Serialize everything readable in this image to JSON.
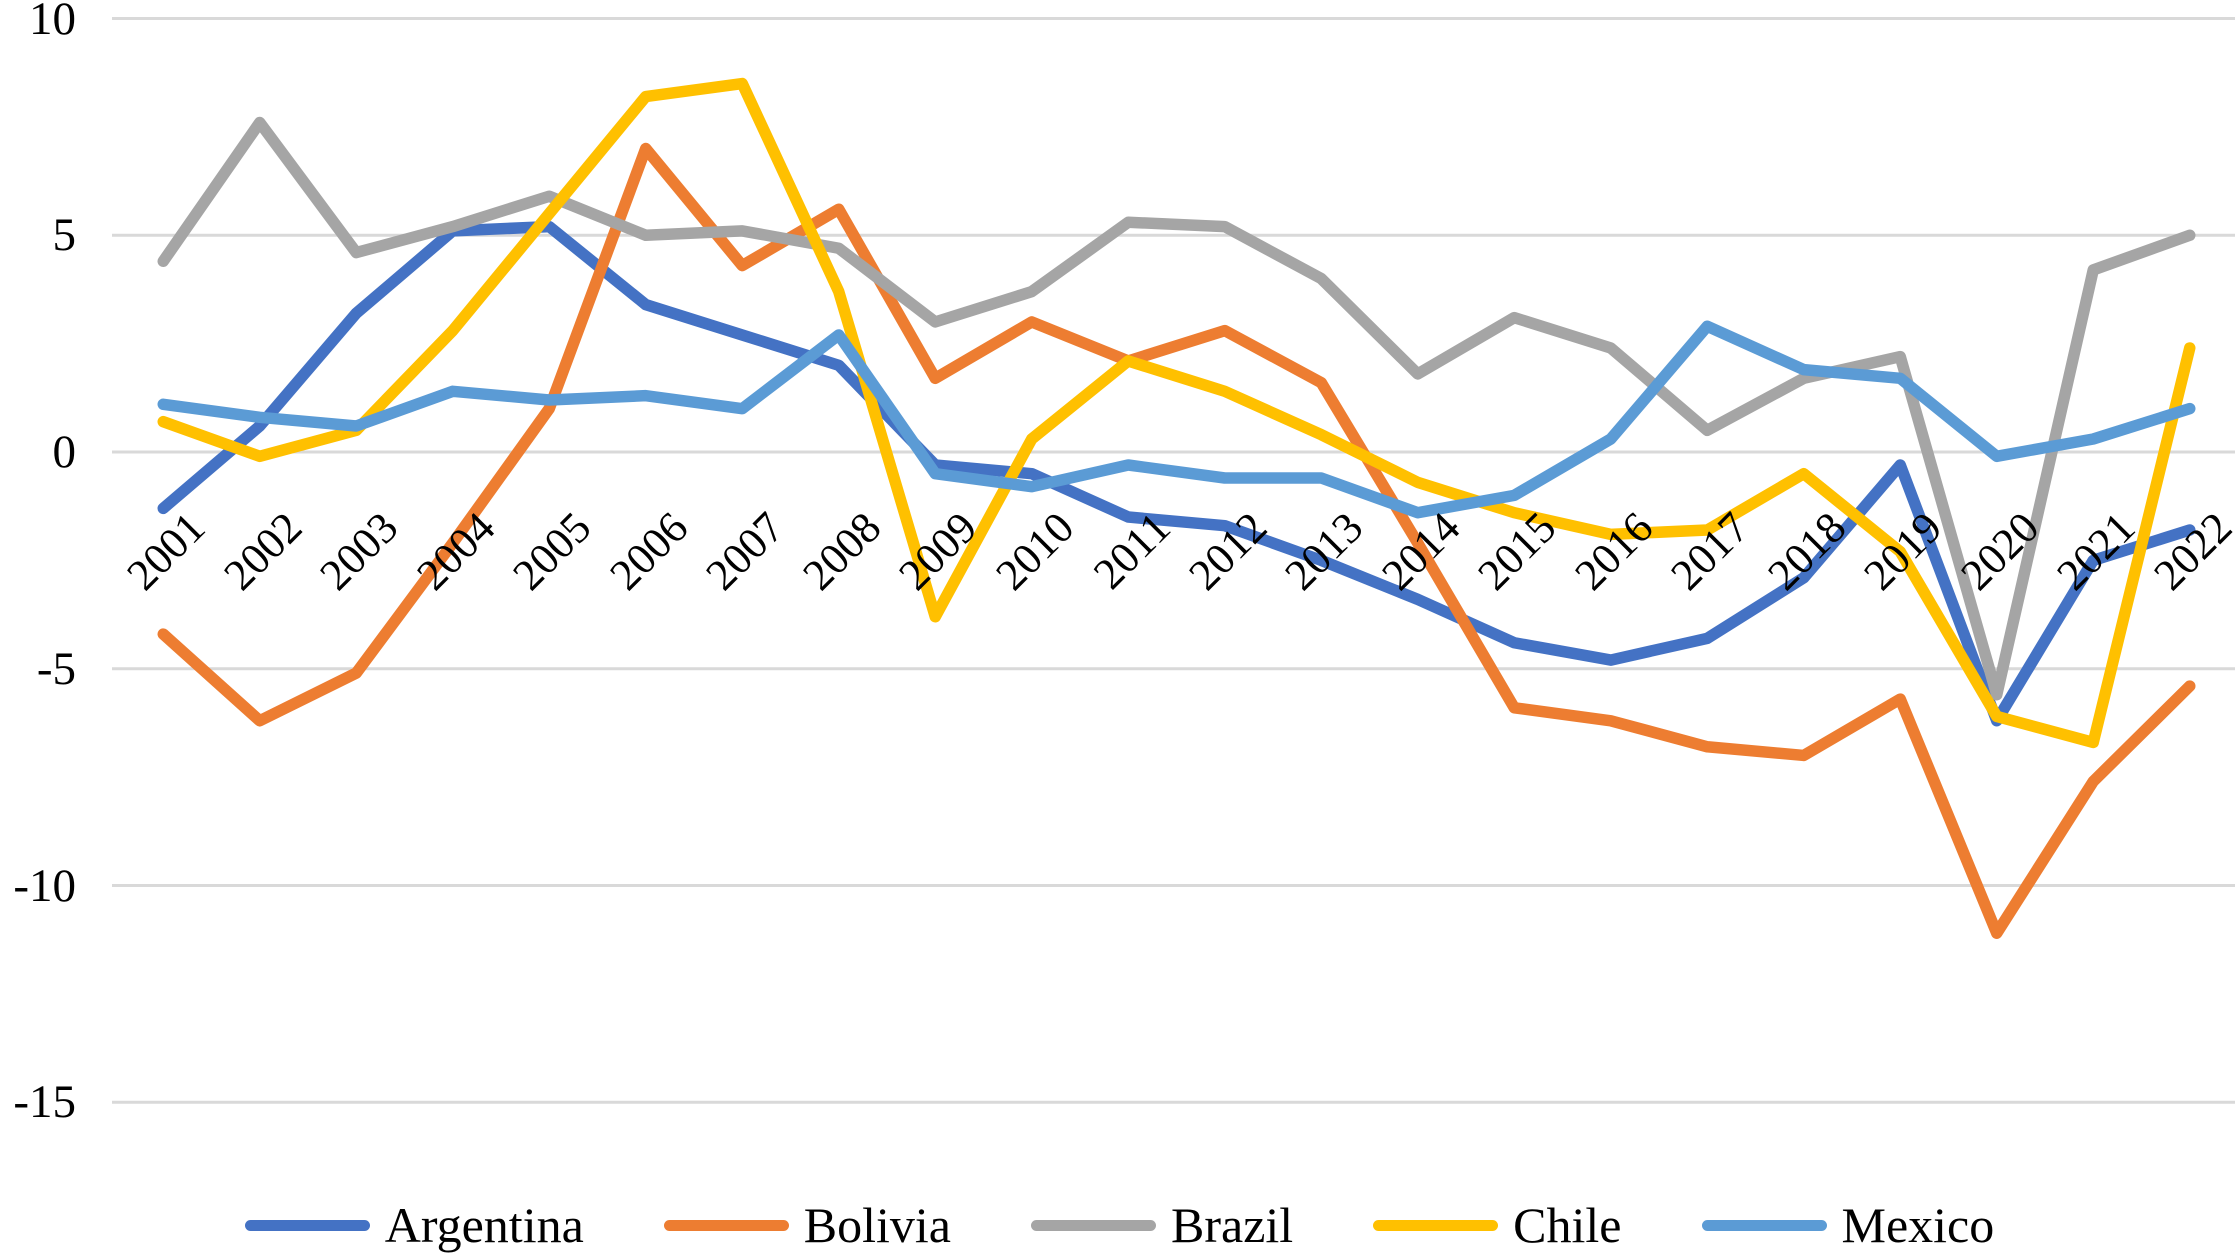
{
  "chart_data": {
    "type": "line",
    "title": "",
    "xlabel": "",
    "ylabel": "",
    "x": [
      "2001",
      "2002",
      "2003",
      "2004",
      "2005",
      "2006",
      "2007",
      "2008",
      "2009",
      "2010",
      "2011",
      "2012",
      "2013",
      "2014",
      "2015",
      "2016",
      "2017",
      "2018",
      "2019",
      "2020",
      "2021",
      "2022"
    ],
    "series": [
      {
        "name": "Argentina",
        "color": "#4472C4",
        "values": [
          -1.3,
          0.6,
          3.2,
          5.1,
          5.2,
          3.4,
          2.7,
          2.0,
          -0.3,
          -0.5,
          -1.5,
          -1.7,
          -2.5,
          -3.4,
          -4.4,
          -4.8,
          -4.3,
          -2.9,
          -0.3,
          -6.2,
          -2.5,
          -1.8
        ]
      },
      {
        "name": "Bolivia",
        "color": "#ED7D31",
        "values": [
          -4.2,
          -6.2,
          -5.1,
          -2.1,
          1.0,
          7.0,
          4.3,
          5.6,
          1.7,
          3.0,
          2.1,
          2.8,
          1.6,
          -2.1,
          -5.9,
          -6.2,
          -6.8,
          -7.0,
          -5.7,
          -11.1,
          -7.6,
          -5.4
        ]
      },
      {
        "name": "Brazil",
        "color": "#A5A5A5",
        "values": [
          4.4,
          7.6,
          4.6,
          5.2,
          5.9,
          5.0,
          5.1,
          4.7,
          3.0,
          3.7,
          5.3,
          5.2,
          4.0,
          1.8,
          3.1,
          2.4,
          0.5,
          1.7,
          2.2,
          -5.6,
          4.2,
          5.0
        ]
      },
      {
        "name": "Chile",
        "color": "#FFC000",
        "values": [
          0.7,
          -0.1,
          0.5,
          2.8,
          5.5,
          8.2,
          8.5,
          3.7,
          -3.8,
          0.3,
          2.1,
          1.4,
          0.4,
          -0.7,
          -1.4,
          -1.9,
          -1.8,
          -0.5,
          -2.3,
          -6.1,
          -6.7,
          2.4
        ]
      },
      {
        "name": "Mexico",
        "color": "#5B9BD5",
        "values": [
          1.1,
          0.8,
          0.6,
          1.4,
          1.2,
          1.3,
          1.0,
          2.7,
          -0.5,
          -0.8,
          -0.3,
          -0.6,
          -0.6,
          -1.4,
          -1.0,
          0.3,
          2.9,
          1.9,
          1.7,
          -0.1,
          0.3,
          1.0
        ]
      }
    ],
    "legend": [
      "Argentina",
      "Bolivia",
      "Brazil",
      "Chile",
      "Mexico"
    ],
    "legend_position": "bottom",
    "ylim": [
      -15,
      10
    ],
    "yticks": [
      "10",
      "5",
      "0",
      "-5",
      "-10",
      "-15"
    ],
    "ytick_values": [
      10,
      5,
      0,
      -5,
      -10,
      -15
    ],
    "grid": true,
    "x_label_rotation_deg": -45,
    "colors": {
      "gridline": "#D9D9D9",
      "text": "#000000",
      "background": "#FFFFFF"
    }
  }
}
